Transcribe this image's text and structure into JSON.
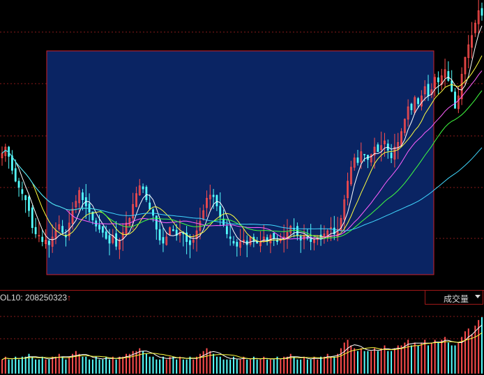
{
  "volume_header": {
    "label": "OL10: 208250323",
    "arrow": "↑"
  },
  "indicator_select": {
    "selected": "成交量"
  },
  "colors": {
    "up": "#ff4d4d",
    "down": "#54ffff",
    "grid": "#8a1a1a",
    "selection_fill": "#0a2463",
    "selection_border": "#d0202a",
    "ma5": "#ffffff",
    "ma10": "#ffff40",
    "ma20": "#ff60ff",
    "ma30": "#40ff40",
    "ma60": "#40d8ff"
  },
  "chart_data": {
    "type": "candlestick",
    "title": "",
    "xlabel": "",
    "ylabel": "",
    "grid": true,
    "close": [
      13.2,
      13.6,
      13.0,
      12.1,
      11.4,
      11.0,
      10.6,
      10.2,
      9.5,
      8.4,
      8.0,
      7.9,
      7.5,
      7.6,
      7.3,
      7.8,
      8.2,
      8.6,
      8.1,
      7.8,
      8.7,
      9.6,
      10.1,
      10.8,
      10.2,
      9.8,
      9.4,
      8.9,
      8.5,
      8.3,
      8.1,
      7.7,
      7.4,
      7.9,
      7.2,
      7.6,
      8.1,
      8.7,
      9.0,
      9.9,
      10.6,
      11.1,
      10.9,
      10.2,
      9.6,
      9.2,
      8.3,
      7.6,
      7.4,
      7.8,
      8.4,
      8.2,
      7.9,
      8.1,
      8.0,
      7.5,
      7.3,
      7.6,
      8.2,
      8.8,
      9.5,
      10.3,
      10.5,
      10.4,
      9.8,
      9.1,
      8.6,
      8.0,
      7.7,
      7.4,
      7.2,
      7.5,
      7.6,
      7.3,
      7.8,
      7.5,
      7.4,
      7.5,
      7.8,
      7.6,
      7.9,
      7.7,
      7.5,
      7.6,
      7.8,
      8.1,
      8.5,
      8.3,
      7.9,
      7.6,
      7.9,
      7.7,
      7.5,
      7.6,
      7.8,
      7.7,
      8.0,
      8.2,
      8.4,
      8.0,
      8.3,
      9.0,
      10.2,
      11.4,
      12.3,
      12.9,
      12.6,
      13.3,
      13.1,
      12.8,
      13.1,
      13.6,
      13.3,
      13.7,
      14.0,
      13.4,
      12.9,
      13.6,
      13.9,
      14.6,
      15.4,
      16.2,
      16.0,
      16.8,
      16.4,
      16.9,
      17.5,
      16.9,
      17.3,
      18.1,
      17.8,
      18.2,
      18.6,
      17.9,
      17.2,
      16.1,
      16.9,
      18.3,
      19.4,
      20.2,
      20.8,
      21.6,
      22.4,
      22.1
    ],
    "volume": [
      5,
      6,
      5,
      5,
      6,
      5,
      6,
      6,
      7,
      6,
      5,
      5,
      6,
      5,
      5,
      6,
      6,
      7,
      6,
      5,
      6,
      7,
      8,
      7,
      6,
      6,
      5,
      5,
      6,
      5,
      5,
      6,
      5,
      6,
      5,
      6,
      6,
      7,
      7,
      8,
      8,
      9,
      8,
      7,
      6,
      6,
      5,
      5,
      6,
      5,
      6,
      6,
      5,
      6,
      5,
      5,
      6,
      5,
      6,
      7,
      8,
      9,
      8,
      7,
      6,
      6,
      5,
      5,
      5,
      6,
      5,
      5,
      6,
      5,
      5,
      6,
      5,
      5,
      6,
      5,
      5,
      5,
      6,
      5,
      6,
      6,
      7,
      6,
      5,
      5,
      6,
      5,
      5,
      6,
      5,
      6,
      6,
      7,
      6,
      6,
      7,
      9,
      11,
      12,
      10,
      9,
      8,
      9,
      8,
      8,
      8,
      9,
      8,
      9,
      10,
      8,
      8,
      9,
      10,
      10,
      11,
      12,
      10,
      11,
      10,
      11,
      12,
      10,
      11,
      12,
      11,
      12,
      13,
      11,
      10,
      10,
      11,
      13,
      15,
      16,
      14,
      17,
      19,
      20
    ],
    "moving_averages": [
      "MA5",
      "MA10",
      "MA20",
      "MA30",
      "MA60"
    ]
  }
}
